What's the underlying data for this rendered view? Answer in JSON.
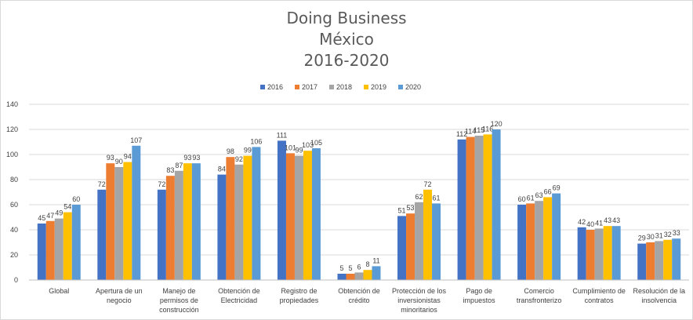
{
  "chart_data": {
    "type": "bar",
    "title_lines": [
      "Doing Business",
      "México",
      "2016-2020"
    ],
    "categories": [
      "Global",
      "Apertura de un negocio",
      "Manejo de permisos de construcción",
      "Obtención de Electricidad",
      "Registro de propiedades",
      "Obtención de crédito",
      "Protección de los inversionistas minoritarios",
      "Pago de impuestos",
      "Comercio transfronterizo",
      "Cumplimiento de contratos",
      "Resolución de la insolvencia"
    ],
    "category_lines": [
      [
        "Global"
      ],
      [
        "Apertura de un",
        "negocio"
      ],
      [
        "Manejo de",
        "permisos de",
        "construcción"
      ],
      [
        "Obtención de",
        "Electricidad"
      ],
      [
        "Registro de",
        "propiedades"
      ],
      [
        "Obtención de",
        "crédito"
      ],
      [
        "Protección de los",
        "inversionistas",
        "minoritarios"
      ],
      [
        "Pago de",
        "impuestos"
      ],
      [
        "Comercio",
        "transfronterizo"
      ],
      [
        "Cumplimiento de",
        "contratos"
      ],
      [
        "Resolución de la",
        "insolvencia"
      ]
    ],
    "series": [
      {
        "name": "2016",
        "color": "#4472c4",
        "values": [
          45,
          72,
          72,
          84,
          111,
          5,
          51,
          112,
          60,
          42,
          29
        ]
      },
      {
        "name": "2017",
        "color": "#ed7d31",
        "values": [
          47,
          93,
          83,
          98,
          101,
          5,
          53,
          114,
          61,
          40,
          30
        ]
      },
      {
        "name": "2018",
        "color": "#a5a5a5",
        "values": [
          49,
          90,
          87,
          92,
          99,
          6,
          62,
          115,
          63,
          41,
          31
        ]
      },
      {
        "name": "2019",
        "color": "#ffc000",
        "values": [
          54,
          94,
          93,
          99,
          103,
          8,
          72,
          116,
          66,
          43,
          32
        ]
      },
      {
        "name": "2020",
        "color": "#5b9bd5",
        "values": [
          60,
          107,
          93,
          106,
          105,
          11,
          61,
          120,
          69,
          43,
          33
        ]
      }
    ],
    "ylim": [
      0,
      140
    ],
    "yticks": [
      0,
      20,
      40,
      60,
      80,
      100,
      120,
      140
    ],
    "grid": true,
    "legend_position": "top"
  }
}
